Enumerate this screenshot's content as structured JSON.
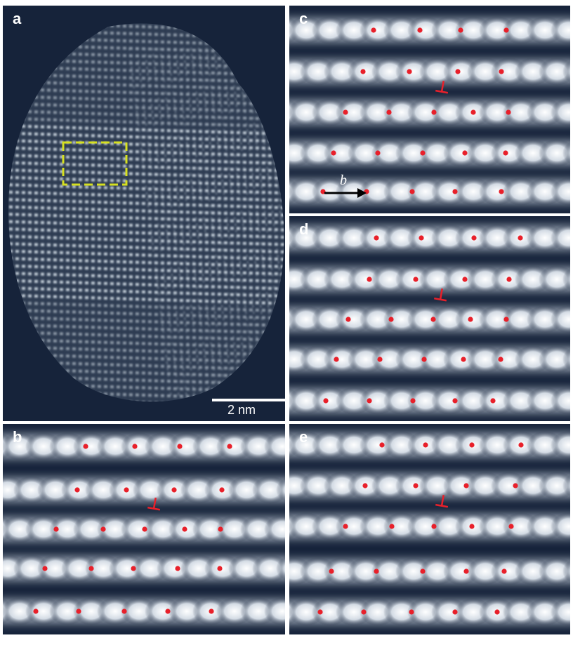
{
  "figure": {
    "panels": [
      {
        "id": "a",
        "label": "a",
        "scale_bar": "2 nm"
      },
      {
        "id": "b",
        "label": "b"
      },
      {
        "id": "c",
        "label": "c",
        "vector_label": "b"
      },
      {
        "id": "d",
        "label": "d"
      },
      {
        "id": "e",
        "label": "e"
      }
    ]
  },
  "colors": {
    "background": "#16233a",
    "atom_column": "#ffffff",
    "marker_dot": "#e8202a",
    "dislocation_symbol": "#e8202a",
    "region_box": "#d6e020",
    "arrow": "#000000"
  },
  "annotations": {
    "dislocation_symbol": "⊥",
    "region_box_style": "dashed"
  }
}
